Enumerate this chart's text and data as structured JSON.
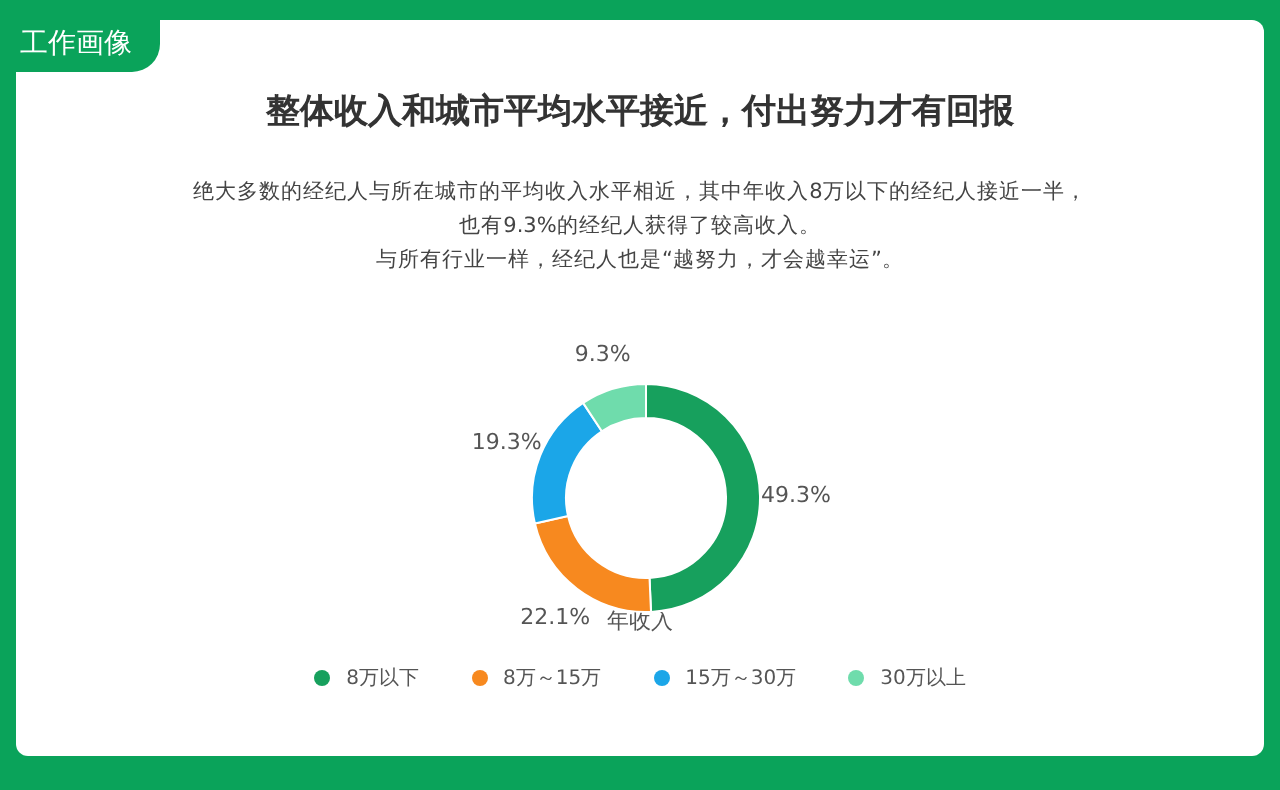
{
  "chart_data": {
    "type": "donut",
    "title": "整体收入和城市平均水平接近，付出努力才有回报",
    "subtitle": "绝大多数的经纪人与所在城市的平均收入水平相近，其中年收入8万以下的经纪人接近一半，也有9.3%的经纪人获得了较高收入。",
    "annotations": [
      "工作画像",
      "与所有行业一样，经纪人也是“越努力，才会越幸运”。"
    ],
    "legend_title": "年收入",
    "legend": "bottom",
    "categories": [
      "8万以下",
      "8万～15万",
      "15万～30万",
      "30万以上"
    ],
    "values": [
      49.3,
      22.1,
      19.3,
      9.3
    ],
    "value_labels": [
      "49.3%",
      "22.1%",
      "19.3%",
      "9.3%"
    ],
    "colors": [
      "#17a05d",
      "#f7891f",
      "#1ba6e8",
      "#6fdcac"
    ]
  }
}
